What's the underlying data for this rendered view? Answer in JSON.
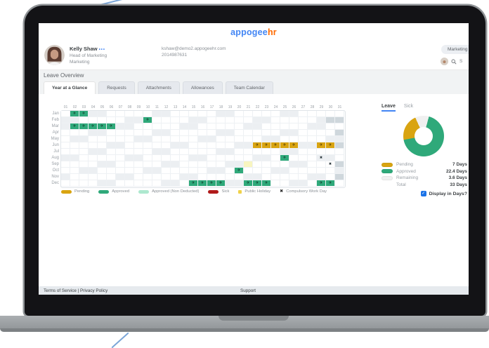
{
  "logo": {
    "part1": "appogee",
    "part2": "hr"
  },
  "profile": {
    "name": "Kelly Shaw",
    "menu_dots": "•••",
    "role": "Head of Marketing",
    "team": "Marketing",
    "email": "kshaw@demo2.appogeehr.com",
    "phone": "2014987631"
  },
  "header_right": {
    "team_pill": "Marketing",
    "search_text": "S"
  },
  "page_title": "Leave Overview",
  "tabs": [
    {
      "label": "Year at a Glance",
      "active": true
    },
    {
      "label": "Requests",
      "active": false
    },
    {
      "label": "Attachments",
      "active": false
    },
    {
      "label": "Allowances",
      "active": false
    },
    {
      "label": "Team Calendar",
      "active": false
    }
  ],
  "icons": {
    "leave_plane": "✈",
    "compulsory_x": "✖",
    "check": "✓",
    "magnifier": "search-icon"
  },
  "calendar": {
    "day_headers": [
      "01",
      "02",
      "03",
      "04",
      "05",
      "06",
      "07",
      "08",
      "09",
      "10",
      "11",
      "12",
      "13",
      "14",
      "15",
      "16",
      "17",
      "18",
      "19",
      "20",
      "21",
      "22",
      "23",
      "24",
      "25",
      "26",
      "27",
      "28",
      "29",
      "30",
      "31"
    ],
    "months": [
      {
        "name": "Jan",
        "days": 31,
        "weekends": [
          4,
          5,
          11,
          12,
          18,
          19,
          25,
          26
        ],
        "marks": [
          {
            "day": 2,
            "type": "approved"
          },
          {
            "day": 3,
            "type": "approved"
          }
        ]
      },
      {
        "name": "Feb",
        "days": 29,
        "weekends": [
          1,
          2,
          8,
          9,
          15,
          16,
          22,
          23,
          29
        ],
        "marks": [
          {
            "day": 10,
            "type": "approved"
          }
        ]
      },
      {
        "name": "Mar",
        "days": 31,
        "weekends": [
          1,
          7,
          8,
          14,
          15,
          21,
          22,
          28,
          29
        ],
        "marks": [
          {
            "day": 2,
            "type": "approved"
          },
          {
            "day": 3,
            "type": "approved"
          },
          {
            "day": 4,
            "type": "approved"
          },
          {
            "day": 5,
            "type": "approved"
          },
          {
            "day": 6,
            "type": "approved"
          }
        ]
      },
      {
        "name": "Apr",
        "days": 30,
        "weekends": [
          4,
          5,
          11,
          12,
          18,
          19,
          25,
          26
        ],
        "marks": []
      },
      {
        "name": "May",
        "days": 31,
        "weekends": [
          2,
          3,
          9,
          10,
          16,
          17,
          23,
          24,
          30,
          31
        ],
        "marks": []
      },
      {
        "name": "Jun",
        "days": 30,
        "weekends": [
          6,
          7,
          13,
          14,
          20,
          21,
          27,
          28
        ],
        "marks": [
          {
            "day": 22,
            "type": "pending"
          },
          {
            "day": 23,
            "type": "pending"
          },
          {
            "day": 24,
            "type": "pending"
          },
          {
            "day": 25,
            "type": "pending"
          },
          {
            "day": 26,
            "type": "pending"
          },
          {
            "day": 29,
            "type": "pending"
          },
          {
            "day": 30,
            "type": "pending"
          }
        ]
      },
      {
        "name": "Jul",
        "days": 31,
        "weekends": [
          4,
          5,
          11,
          12,
          18,
          19,
          25,
          26
        ],
        "marks": []
      },
      {
        "name": "Aug",
        "days": 31,
        "weekends": [
          1,
          2,
          8,
          9,
          15,
          16,
          22,
          23,
          29,
          30
        ],
        "marks": [
          {
            "day": 25,
            "type": "approved"
          },
          {
            "day": 29,
            "type": "compulsory"
          }
        ]
      },
      {
        "name": "Sep",
        "days": 30,
        "weekends": [
          5,
          6,
          12,
          13,
          19,
          20,
          26,
          27
        ],
        "marks": [
          {
            "day": 21,
            "type": "holiday"
          },
          {
            "day": 30,
            "type": "compulsory"
          }
        ]
      },
      {
        "name": "Oct",
        "days": 31,
        "weekends": [
          3,
          4,
          10,
          11,
          17,
          18,
          24,
          25,
          31
        ],
        "marks": [
          {
            "day": 20,
            "type": "approved"
          }
        ]
      },
      {
        "name": "Nov",
        "days": 30,
        "weekends": [
          1,
          7,
          8,
          14,
          15,
          21,
          22,
          28,
          29
        ],
        "marks": []
      },
      {
        "name": "Dec",
        "days": 31,
        "weekends": [
          5,
          6,
          12,
          13,
          19,
          20,
          26,
          27
        ],
        "marks": [
          {
            "day": 15,
            "type": "approved"
          },
          {
            "day": 16,
            "type": "approved"
          },
          {
            "day": 17,
            "type": "approved"
          },
          {
            "day": 18,
            "type": "approved"
          },
          {
            "day": 21,
            "type": "approved"
          },
          {
            "day": 22,
            "type": "approved"
          },
          {
            "day": 23,
            "type": "approved"
          },
          {
            "day": 29,
            "type": "approved"
          },
          {
            "day": 30,
            "type": "approved"
          }
        ]
      }
    ],
    "legend": [
      {
        "label": "Pending",
        "type": "pending"
      },
      {
        "label": "Approved",
        "type": "approved"
      },
      {
        "label": "Approved (Non Deducted)",
        "type": "approved_nd"
      },
      {
        "label": "Sick",
        "type": "sick"
      },
      {
        "label": "Public Holiday",
        "type": "holiday"
      },
      {
        "label": "Compulsory Work Day",
        "type": "compulsory"
      }
    ]
  },
  "summary": {
    "tabs": [
      {
        "label": "Leave",
        "active": true
      },
      {
        "label": "Sick",
        "active": false
      }
    ],
    "total_label": "Total",
    "checkbox_label": "Display in Days?",
    "checkbox_checked": true
  },
  "chart_data": {
    "type": "pie",
    "title": "Leave",
    "series": [
      {
        "name": "Pending",
        "value": 7,
        "display": "7 Days",
        "color": "#d9a411"
      },
      {
        "name": "Approved",
        "value": 22.4,
        "display": "22.4 Days",
        "color": "#2fa97a"
      },
      {
        "name": "Remaining",
        "value": 3.6,
        "display": "3.6 Days",
        "color": "#f0f0f0"
      }
    ],
    "total": 33,
    "total_display": "33 Days",
    "legend_position": "below",
    "donut": true
  },
  "footer": {
    "left": "Terms of Service | Privacy Policy",
    "center": "Support"
  },
  "colors": {
    "pending": "#d9a411",
    "approved": "#2fa97a",
    "approved_non_deducted": "#aee8cf",
    "sick": "#b01a1a",
    "public_holiday_cell": "#f8f5c0",
    "public_holiday_dot": "#f0d24a",
    "remaining": "#f0f0f0",
    "accent_blue": "#4285f4",
    "logo_orange": "#ff6a00",
    "weekend_cell": "#eceff2",
    "disabled_cell": "#cfd7dc"
  }
}
